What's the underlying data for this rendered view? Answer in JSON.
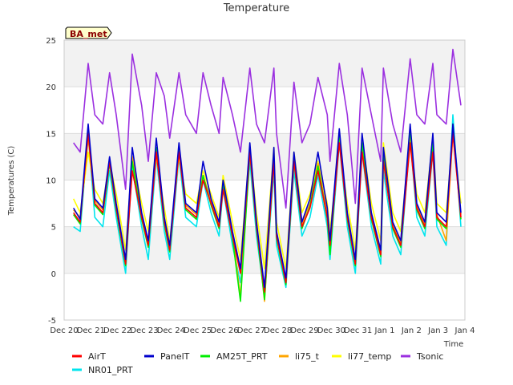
{
  "chart_data": {
    "type": "line",
    "title": "Temperature",
    "xlabel": "Time",
    "ylabel": "Temperatures (C)",
    "badge": "BA_met",
    "ylim": [
      -5,
      25
    ],
    "xlim": [
      0,
      15
    ],
    "yticks": [
      -5,
      0,
      5,
      10,
      15,
      20,
      25
    ],
    "xtick_labels": [
      "Dec 20",
      "Dec 21",
      "Dec 22",
      "Dec 23",
      "Dec 24",
      "Dec 25",
      "Dec 26",
      "Dec 27",
      "Dec 28",
      "Dec 29",
      "Dec 30",
      "Dec 31",
      "Jan 1",
      "Jan 2",
      "Jan 3",
      "Jan 4"
    ],
    "grid": true,
    "legend_position": "bottom",
    "colors": {
      "AirT": "#ff0000",
      "PanelT": "#0000cc",
      "AM25T_PRT": "#00ee00",
      "li75_t": "#ffa500",
      "li77_temp": "#ffff00",
      "Tsonic": "#9b30e0",
      "NR01_PRT": "#00e5ee"
    },
    "x_days": [
      0.35,
      0.6,
      0.9,
      1.15,
      1.45,
      1.7,
      1.95,
      2.3,
      2.55,
      2.9,
      3.15,
      3.45,
      3.75,
      3.95,
      4.3,
      4.55,
      4.95,
      5.2,
      5.5,
      5.8,
      5.95,
      6.3,
      6.6,
      6.95,
      7.2,
      7.5,
      7.85,
      7.95,
      8.3,
      8.6,
      8.9,
      9.2,
      9.5,
      9.85,
      9.95,
      10.3,
      10.6,
      10.9,
      11.15,
      11.5,
      11.85,
      11.95,
      12.3,
      12.6,
      12.95,
      13.2,
      13.5,
      13.8,
      13.95,
      14.3,
      14.55,
      14.85
    ],
    "series": [
      {
        "name": "AirT",
        "values": [
          6.5,
          5.5,
          15,
          7.5,
          6.5,
          12,
          7,
          1,
          11,
          6,
          3,
          13,
          5.5,
          2.5,
          13,
          7,
          6,
          10,
          7.5,
          5,
          9,
          4,
          0,
          13,
          5,
          -2,
          12,
          4,
          -1,
          12,
          5,
          7,
          11,
          6,
          3,
          14,
          6,
          1,
          13,
          6,
          2,
          12,
          5,
          3,
          14,
          7,
          5,
          13,
          6,
          5,
          15,
          6
        ]
      },
      {
        "name": "PanelT",
        "values": [
          7,
          5.8,
          16,
          8,
          7,
          12.5,
          7.5,
          1.5,
          13.5,
          6.5,
          3.5,
          14.5,
          6,
          3,
          14,
          7.5,
          6.5,
          12,
          8,
          5.5,
          10,
          4.5,
          0.5,
          14,
          5.5,
          -1.5,
          13.5,
          4.5,
          -0.5,
          13,
          5.5,
          8,
          13,
          7,
          3.5,
          15.5,
          6.5,
          1.5,
          15,
          6.5,
          2.5,
          13.5,
          5.5,
          3.5,
          16,
          7.5,
          5.5,
          15,
          6.5,
          5.5,
          16,
          6.5
        ]
      },
      {
        "name": "AM25T_PRT",
        "values": [
          6.3,
          5.3,
          15.5,
          7.3,
          6.3,
          11.8,
          6.8,
          0.8,
          12,
          5.8,
          2.8,
          13.5,
          5.3,
          2.3,
          13.5,
          6.8,
          5.8,
          10.5,
          7.3,
          4.8,
          9.5,
          3.8,
          -3,
          13,
          4.8,
          -2.8,
          12.5,
          3.8,
          -1.2,
          12,
          4.8,
          7.2,
          11.5,
          5.8,
          2,
          15,
          5.8,
          0.8,
          14,
          5.8,
          1.8,
          12.5,
          4.8,
          2.8,
          15.5,
          6.8,
          4.8,
          14,
          5.8,
          4.8,
          16,
          5.8
        ]
      },
      {
        "name": "li75_t",
        "values": [
          6.8,
          6,
          14.5,
          7.8,
          6.8,
          12.3,
          7.3,
          1.3,
          12.5,
          6.3,
          3.3,
          13.5,
          5.8,
          2.8,
          13.5,
          7.3,
          6.3,
          10.5,
          7.8,
          5.3,
          9.8,
          4.3,
          -2.5,
          13.5,
          5.3,
          -3,
          12.5,
          4.3,
          -0.8,
          12.3,
          5.3,
          7.5,
          11.8,
          6.3,
          3.3,
          14.5,
          6.3,
          1.3,
          13.5,
          6.3,
          2.3,
          12.5,
          5.3,
          3.3,
          14.5,
          7.3,
          5.3,
          13.5,
          6.3,
          3.5,
          15,
          6.3
        ]
      },
      {
        "name": "li77_temp",
        "values": [
          8,
          6.5,
          13,
          9,
          7.5,
          12,
          8.5,
          2.5,
          12.5,
          7.5,
          4.5,
          12.5,
          7,
          3.5,
          12.5,
          8.5,
          7.5,
          11,
          8.5,
          6,
          10.5,
          5.5,
          1.5,
          13.5,
          6.5,
          0.5,
          13.5,
          5.5,
          0.5,
          13,
          6.5,
          8.5,
          12,
          7.5,
          4.5,
          14,
          7.5,
          2.5,
          14.5,
          7.5,
          3.5,
          14,
          6.5,
          4.5,
          14.5,
          8.5,
          6.5,
          14.5,
          7.5,
          6.5,
          15,
          7.5
        ]
      },
      {
        "name": "Tsonic",
        "values": [
          14,
          13,
          22.5,
          17,
          16,
          21.5,
          17,
          9,
          23.5,
          18,
          12,
          21.5,
          19,
          14.5,
          21.5,
          17,
          15,
          21.5,
          18,
          15,
          21,
          17,
          13,
          22,
          16,
          14,
          22,
          15,
          7,
          20.5,
          14,
          16,
          21,
          17,
          12,
          22.5,
          17,
          7.5,
          22,
          17,
          12,
          22,
          16,
          13,
          23,
          17,
          16,
          22.5,
          17,
          16,
          24,
          18
        ]
      },
      {
        "name": "NR01_PRT",
        "values": [
          5,
          4.5,
          15,
          6,
          5,
          11,
          6,
          0,
          11.5,
          5,
          1.5,
          12.5,
          4.5,
          1.5,
          12.5,
          6,
          5,
          10,
          6.5,
          4,
          9,
          3,
          -1,
          12,
          4,
          -2.5,
          11,
          3,
          -1.5,
          11,
          4,
          6,
          10.5,
          5,
          1.5,
          14,
          5,
          0,
          13,
          5,
          1,
          11,
          4,
          2,
          14.5,
          6,
          4,
          13,
          5,
          3,
          17,
          5
        ]
      }
    ]
  }
}
